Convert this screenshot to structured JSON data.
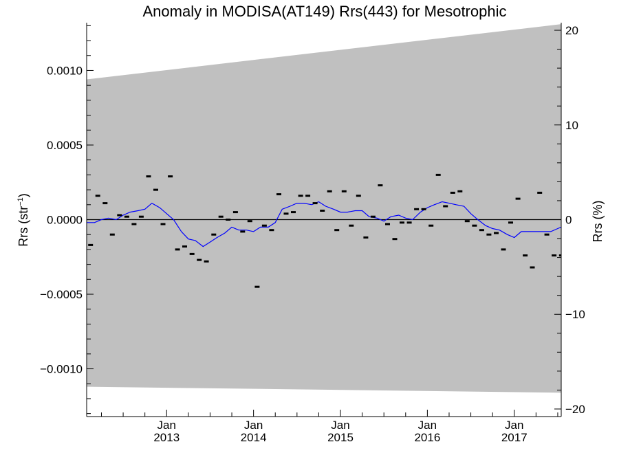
{
  "chart_data": {
    "type": "line",
    "title": "Anomaly in MODISA(AT149) Rrs(443) for Mesotrophic",
    "ylabel_left": "Rrs (str",
    "ylabel_left_sup": "−1",
    "ylabel_left_close": ")",
    "ylabel_right": "Rrs (%)",
    "x_ticks": [
      {
        "label_month": "Jan",
        "label_year": "2013",
        "x": 2013.0
      },
      {
        "label_month": "Jan",
        "label_year": "2014",
        "x": 2014.0
      },
      {
        "label_month": "Jan",
        "label_year": "2015",
        "x": 2015.0
      },
      {
        "label_month": "Jan",
        "label_year": "2016",
        "x": 2016.0
      },
      {
        "label_month": "Jan",
        "label_year": "2017",
        "x": 2017.0
      }
    ],
    "xlim": [
      2012.08,
      2017.54
    ],
    "ylim_left": [
      -0.00132,
      0.00132
    ],
    "ylim_right": [
      -20.8,
      20.8
    ],
    "y_ticks_left": [
      {
        "label": "0.0010",
        "value": 0.001
      },
      {
        "label": "0.0005",
        "value": 0.0005
      },
      {
        "label": "0.0000",
        "value": 0.0
      },
      {
        "label": "−0.0005",
        "value": -0.0005
      },
      {
        "label": "−0.0010",
        "value": -0.001
      }
    ],
    "y_ticks_right": [
      {
        "label": "20",
        "value": 20
      },
      {
        "label": "10",
        "value": 10
      },
      {
        "label": "0",
        "value": 0
      },
      {
        "label": "−10",
        "value": -10
      },
      {
        "label": "−20",
        "value": -20
      }
    ],
    "uncertainty_band": {
      "color": "#c0c0c0",
      "x": [
        2012.08,
        2017.54
      ],
      "upper": [
        0.00094,
        0.00131
      ],
      "lower": [
        -0.00112,
        -0.00116
      ]
    },
    "zero_line": true,
    "monthly_anomalies": {
      "color": "#000000",
      "x": [
        2012.125,
        2012.208,
        2012.292,
        2012.375,
        2012.458,
        2012.542,
        2012.625,
        2012.708,
        2012.792,
        2012.875,
        2012.958,
        2013.042,
        2013.125,
        2013.208,
        2013.292,
        2013.375,
        2013.458,
        2013.542,
        2013.625,
        2013.708,
        2013.792,
        2013.875,
        2013.958,
        2014.042,
        2014.125,
        2014.208,
        2014.292,
        2014.375,
        2014.458,
        2014.542,
        2014.625,
        2014.708,
        2014.792,
        2014.875,
        2014.958,
        2015.042,
        2015.125,
        2015.208,
        2015.292,
        2015.375,
        2015.458,
        2015.542,
        2015.625,
        2015.708,
        2015.792,
        2015.875,
        2015.958,
        2016.042,
        2016.125,
        2016.208,
        2016.292,
        2016.375,
        2016.458,
        2016.542,
        2016.625,
        2016.708,
        2016.792,
        2016.875,
        2016.958,
        2017.042,
        2017.125,
        2017.208,
        2017.292,
        2017.375,
        2017.458,
        2017.542
      ],
      "values": [
        -0.00017,
        0.00016,
        0.00011,
        -0.0001,
        3e-05,
        2e-05,
        -3e-05,
        2e-05,
        0.00029,
        0.0002,
        -3e-05,
        0.00029,
        -0.0002,
        -0.00018,
        -0.00023,
        -0.00027,
        -0.00028,
        -0.0001,
        2e-05,
        0.0,
        5e-05,
        -8e-05,
        -1e-05,
        -0.00045,
        -4e-05,
        -7e-05,
        0.00017,
        4e-05,
        5e-05,
        0.00016,
        0.00016,
        0.00011,
        6e-05,
        0.00019,
        -7e-05,
        0.00019,
        -4e-05,
        0.00016,
        -0.00012,
        2e-05,
        0.00023,
        -3e-05,
        -0.00013,
        -2e-05,
        -2e-05,
        7e-05,
        7e-05,
        -4e-05,
        0.0003,
        9e-05,
        0.00018,
        0.00019,
        -1e-05,
        -4e-05,
        -7e-05,
        -0.0001,
        -9e-05,
        -0.0002,
        -2e-05,
        0.00014,
        -0.00024,
        -0.00032,
        0.00018,
        -0.0001,
        -0.00024,
        -0.00024
      ]
    },
    "running_mean": {
      "color": "#0000ff",
      "x": [
        2012.08,
        2012.17,
        2012.25,
        2012.33,
        2012.42,
        2012.5,
        2012.58,
        2012.67,
        2012.75,
        2012.83,
        2012.92,
        2013.0,
        2013.08,
        2013.17,
        2013.25,
        2013.33,
        2013.42,
        2013.5,
        2013.58,
        2013.67,
        2013.75,
        2013.83,
        2013.92,
        2014.0,
        2014.08,
        2014.17,
        2014.25,
        2014.33,
        2014.42,
        2014.5,
        2014.58,
        2014.67,
        2014.75,
        2014.83,
        2014.92,
        2015.0,
        2015.08,
        2015.17,
        2015.25,
        2015.33,
        2015.42,
        2015.5,
        2015.58,
        2015.67,
        2015.75,
        2015.83,
        2015.92,
        2016.0,
        2016.08,
        2016.17,
        2016.25,
        2016.33,
        2016.42,
        2016.5,
        2016.58,
        2016.67,
        2016.75,
        2016.83,
        2016.92,
        2017.0,
        2017.08,
        2017.17,
        2017.25,
        2017.33,
        2017.42,
        2017.5,
        2017.54
      ],
      "values": [
        -2e-05,
        -2e-05,
        0.0,
        1e-05,
        0.0,
        3e-05,
        5e-05,
        6e-05,
        7e-05,
        0.00011,
        8e-05,
        4e-05,
        0.0,
        -8e-05,
        -0.00013,
        -0.00014,
        -0.00018,
        -0.00015,
        -0.00012,
        -9e-05,
        -5e-05,
        -7e-05,
        -7e-05,
        -8e-05,
        -5e-05,
        -5e-05,
        -2e-05,
        7e-05,
        9e-05,
        0.00011,
        0.00011,
        0.0001,
        0.00012,
        9e-05,
        7e-05,
        5e-05,
        5e-05,
        6e-05,
        6e-05,
        2e-05,
        1e-05,
        -1e-05,
        2e-05,
        3e-05,
        1e-05,
        0.0,
        5e-05,
        8e-05,
        0.0001,
        0.00012,
        0.00011,
        0.0001,
        9e-05,
        4e-05,
        0.0,
        -4e-05,
        -6e-05,
        -7e-05,
        -0.0001,
        -0.00012,
        -8e-05,
        -8e-05,
        -8e-05,
        -8e-05,
        -8e-05,
        -6e-05,
        -5e-05
      ]
    }
  }
}
